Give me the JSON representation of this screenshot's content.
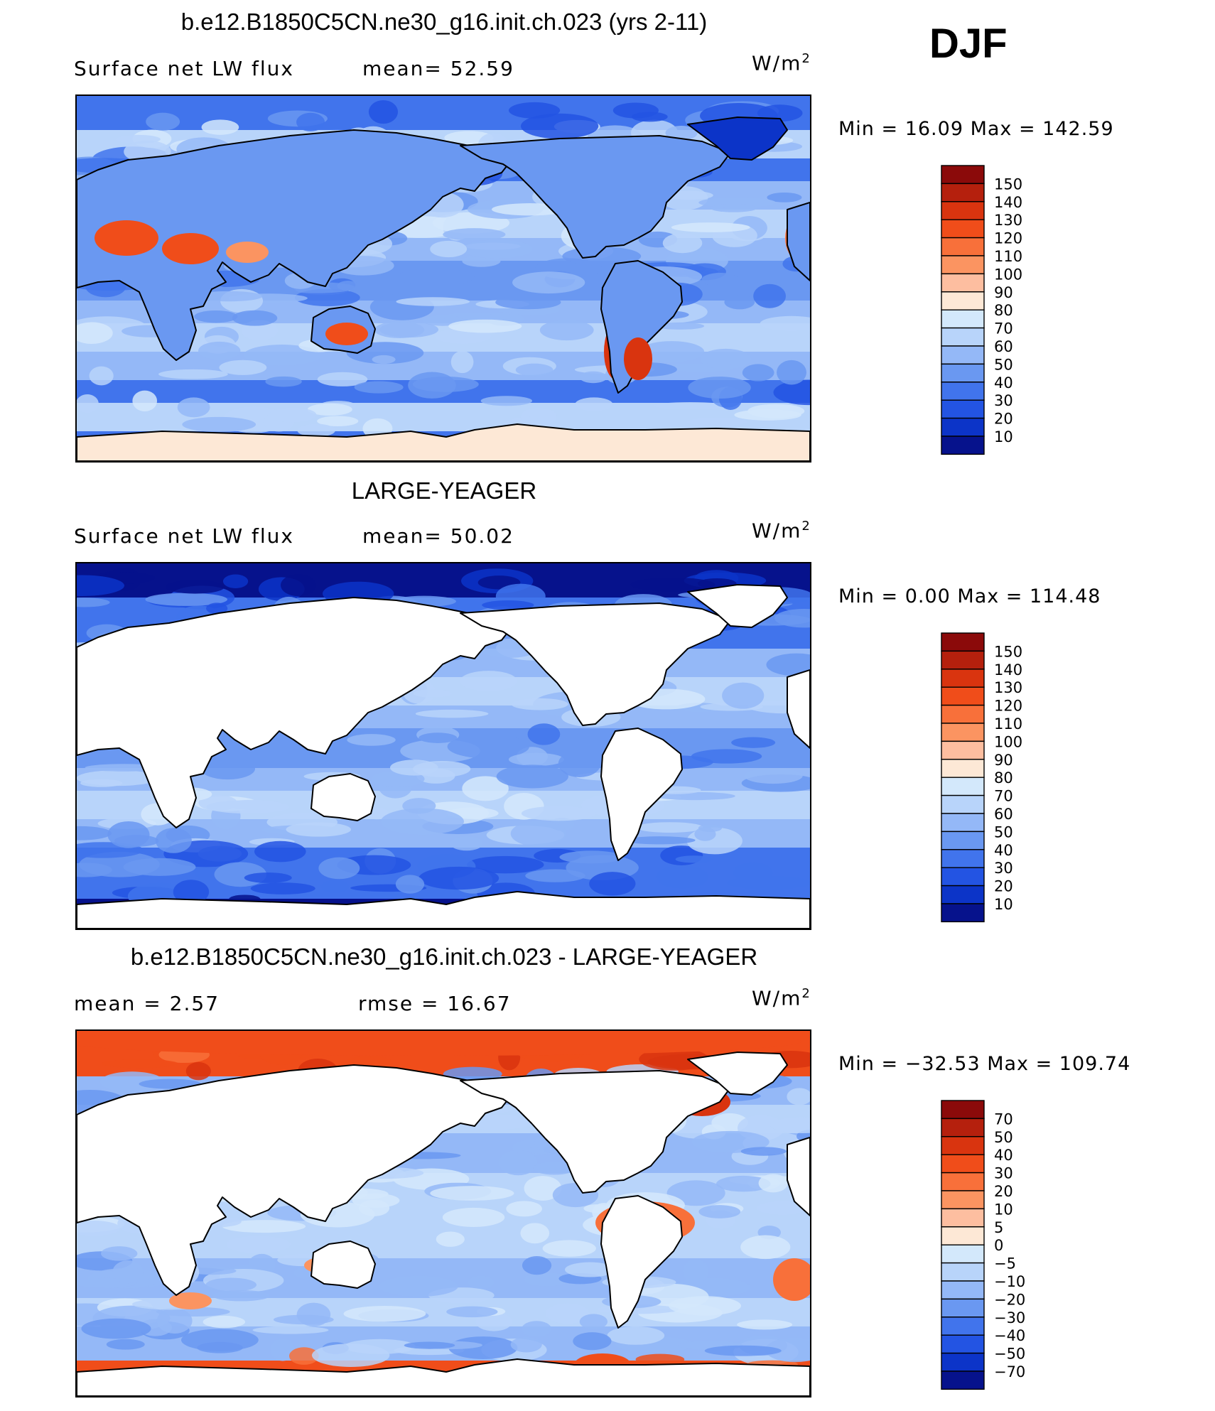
{
  "header": {
    "season": "DJF"
  },
  "chart_data": [
    {
      "type": "heatmap",
      "title": "b.e12.B1850C5CN.ne30_g16.init.ch.023 (yrs 2-11)",
      "variable": "Surface net LW flux",
      "stat_left": "Surface net LW flux",
      "stat_mid": "mean=   52.59",
      "mean": 52.59,
      "units": "W/m",
      "units_exp": "2",
      "minmax_text": "Min =   16.09  Max  =  142.59",
      "min": 16.09,
      "max": 142.59,
      "colorbar_levels": [
        "150",
        "140",
        "130",
        "120",
        "110",
        "100",
        "90",
        "80",
        "70",
        "60",
        "50",
        "40",
        "30",
        "20",
        "10"
      ],
      "colorbar_colors": [
        "#8b0a0a",
        "#b5200d",
        "#d9340f",
        "#f04d1a",
        "#f8703a",
        "#fb9461",
        "#fdbea0",
        "#fde8d6",
        "#d3e8fb",
        "#b8d4fa",
        "#94b8f7",
        "#6a98f1",
        "#4174ec",
        "#2354e3",
        "#0c34c8",
        "#06128c"
      ],
      "land_masked": false
    },
    {
      "type": "heatmap",
      "title": "LARGE-YEAGER",
      "variable": "Surface net LW flux",
      "stat_left": "Surface net LW flux",
      "stat_mid": "mean=   50.02",
      "mean": 50.02,
      "units": "W/m",
      "units_exp": "2",
      "minmax_text": "Min =    0.00  Max  =  114.48",
      "min": 0.0,
      "max": 114.48,
      "colorbar_levels": [
        "150",
        "140",
        "130",
        "120",
        "110",
        "100",
        "90",
        "80",
        "70",
        "60",
        "50",
        "40",
        "30",
        "20",
        "10"
      ],
      "colorbar_colors": [
        "#8b0a0a",
        "#b5200d",
        "#d9340f",
        "#f04d1a",
        "#f8703a",
        "#fb9461",
        "#fdbea0",
        "#fde8d6",
        "#d3e8fb",
        "#b8d4fa",
        "#94b8f7",
        "#6a98f1",
        "#4174ec",
        "#2354e3",
        "#0c34c8",
        "#06128c"
      ],
      "land_masked": true
    },
    {
      "type": "heatmap",
      "title": "b.e12.B1850C5CN.ne30_g16.init.ch.023 - LARGE-YEAGER",
      "variable": "",
      "stat_left": "mean =     2.57",
      "stat_mid": "rmse  =    16.67",
      "mean": 2.57,
      "rmse": 16.67,
      "units": "W/m",
      "units_exp": "2",
      "minmax_text": "Min  =  −32.53  Max  =  109.74",
      "min": -32.53,
      "max": 109.74,
      "colorbar_levels": [
        "70",
        "50",
        "40",
        "30",
        "20",
        "10",
        "5",
        "0",
        "−5",
        "−10",
        "−20",
        "−30",
        "−40",
        "−50",
        "−70"
      ],
      "colorbar_colors": [
        "#8b0a0a",
        "#b5200d",
        "#d9340f",
        "#f04d1a",
        "#f8703a",
        "#fb9461",
        "#fdbea0",
        "#fde8d6",
        "#d3e8fb",
        "#b8d4fa",
        "#94b8f7",
        "#6a98f1",
        "#4174ec",
        "#2354e3",
        "#0c34c8",
        "#06128c"
      ],
      "land_masked": true
    }
  ]
}
